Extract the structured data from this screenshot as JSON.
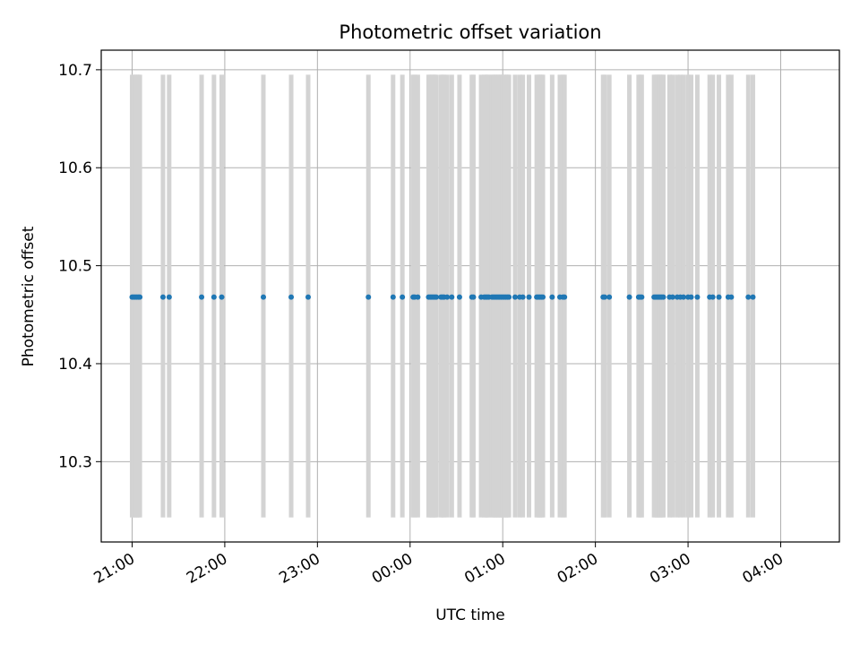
{
  "chart_data": {
    "type": "scatter",
    "title": "Photometric offset variation",
    "xlabel": "UTC time",
    "ylabel": "Photometric offset",
    "xlim": [
      "20:40",
      "04:38"
    ],
    "ylim": [
      10.218,
      10.72
    ],
    "x_ticks": [
      "21:00",
      "22:00",
      "23:00",
      "00:00",
      "01:00",
      "02:00",
      "03:00",
      "04:00"
    ],
    "y_ticks": [
      "10.3",
      "10.4",
      "10.5",
      "10.6",
      "10.7"
    ],
    "grid": true,
    "colors": {
      "points": "#1f77b4",
      "bands": "#d3d3d3",
      "grid": "#b0b0b0"
    },
    "band_range": [
      10.243,
      10.695
    ],
    "series": [
      {
        "y": 10.468,
        "x": [
          "21:00",
          "21:01",
          "21:02",
          "21:03",
          "21:04",
          "21:05",
          "21:20",
          "21:24",
          "21:45",
          "21:53",
          "21:58",
          "22:25",
          "22:43",
          "22:54",
          "23:33",
          "23:49",
          "23:55",
          "00:02",
          "00:03",
          "00:05",
          "00:12",
          "00:13",
          "00:14",
          "00:15",
          "00:16",
          "00:17",
          "00:20",
          "00:21",
          "00:22",
          "00:24",
          "00:27",
          "00:32",
          "00:40",
          "00:41",
          "00:46",
          "00:48",
          "00:49",
          "00:50",
          "00:51",
          "00:53",
          "00:54",
          "00:55",
          "00:56",
          "00:57",
          "00:58",
          "00:59",
          "01:00",
          "01:01",
          "01:02",
          "01:03",
          "01:04",
          "01:08",
          "01:11",
          "01:13",
          "01:17",
          "01:22",
          "01:23",
          "01:24",
          "01:25",
          "01:26",
          "01:32",
          "01:37",
          "01:39",
          "01:40",
          "02:05",
          "02:06",
          "02:09",
          "02:22",
          "02:28",
          "02:29",
          "02:30",
          "02:38",
          "02:39",
          "02:40",
          "02:41",
          "02:42",
          "02:43",
          "02:44",
          "02:48",
          "02:50",
          "02:53",
          "02:55",
          "02:57",
          "03:00",
          "03:02",
          "03:06",
          "03:14",
          "03:16",
          "03:20",
          "03:26",
          "03:28",
          "03:39",
          "03:42"
        ]
      }
    ]
  }
}
